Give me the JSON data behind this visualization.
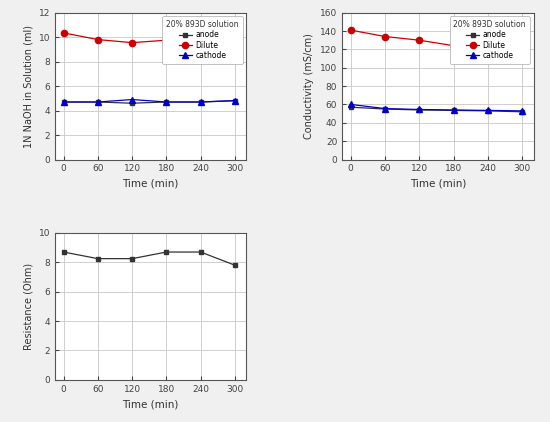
{
  "time": [
    0,
    60,
    120,
    180,
    240,
    300
  ],
  "naoh_anode": [
    4.7,
    4.7,
    4.6,
    4.7,
    4.7,
    4.8
  ],
  "naoh_dilute": [
    10.35,
    9.8,
    9.55,
    9.75,
    9.55,
    9.6
  ],
  "naoh_cathode": [
    4.7,
    4.7,
    4.9,
    4.7,
    4.7,
    4.82
  ],
  "cond_anode": [
    57,
    55,
    54,
    53.5,
    53,
    52
  ],
  "cond_dilute": [
    141,
    134,
    130,
    124,
    120,
    119
  ],
  "cond_cathode": [
    60,
    55.5,
    54.5,
    54,
    53.5,
    53
  ],
  "resistance": [
    8.7,
    8.25,
    8.25,
    8.7,
    8.7,
    7.8
  ],
  "xlabel": "Time (min)",
  "ylabel_naoh": "1N NaOH in Solution (ml)",
  "ylabel_cond": "Conductivity (mS/cm)",
  "ylabel_resist": "Resistance (Ohm)",
  "legend_title": "20% 893D solution",
  "legend_anode": "anode",
  "legend_dilute": "Dilute",
  "legend_cathode": "cathode",
  "color_anode": "#333333",
  "color_dilute": "#cc0000",
  "color_cathode": "#0000cc",
  "naoh_ylim": [
    0,
    12
  ],
  "naoh_yticks": [
    0,
    2,
    4,
    6,
    8,
    10,
    12
  ],
  "cond_ylim": [
    0,
    160
  ],
  "cond_yticks": [
    0,
    20,
    40,
    60,
    80,
    100,
    120,
    140,
    160
  ],
  "resist_ylim": [
    0,
    10
  ],
  "resist_yticks": [
    0,
    2,
    4,
    6,
    8,
    10
  ],
  "xticks": [
    0,
    60,
    120,
    180,
    240,
    300
  ],
  "fig_bg": "#f0f0f0",
  "axes_bg": "#ffffff",
  "grid_color": "#c8c8c8"
}
